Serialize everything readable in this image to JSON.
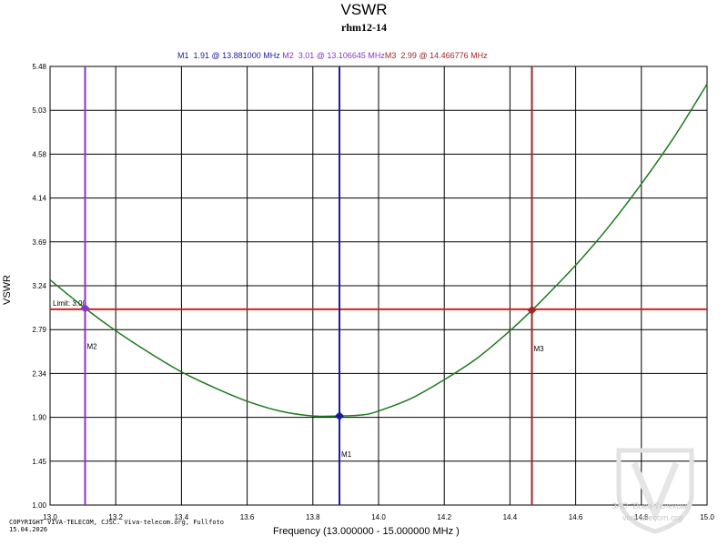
{
  "chart_data": {
    "type": "line",
    "title": "VSWR",
    "subtitle": "rhm12-14",
    "xlabel": "Frequency (13.000000 - 15.000000 MHz )",
    "ylabel": "VSWR",
    "xlim": [
      13.0,
      15.0
    ],
    "ylim": [
      1.0,
      5.48
    ],
    "x_ticks": [
      "13.0",
      "13.2",
      "13.4",
      "13.6",
      "13.8",
      "14.0",
      "14.2",
      "14.4",
      "14.6",
      "14.8",
      "15.0"
    ],
    "y_ticks": [
      "1.00",
      "1.45",
      "1.90",
      "2.34",
      "2.79",
      "3.24",
      "3.69",
      "4.14",
      "4.58",
      "5.03",
      "5.48"
    ],
    "grid": true,
    "series": [
      {
        "name": "VSWR",
        "color": "#1f7a1f",
        "x": [
          13.0,
          13.106645,
          13.2,
          13.3,
          13.4,
          13.5,
          13.6,
          13.7,
          13.8,
          13.881,
          13.95,
          14.0,
          14.1,
          14.2,
          14.3,
          14.4,
          14.466776,
          14.5,
          14.6,
          14.7,
          14.8,
          14.9,
          15.0
        ],
        "y": [
          3.3,
          3.01,
          2.78,
          2.56,
          2.36,
          2.2,
          2.06,
          1.96,
          1.91,
          1.91,
          1.92,
          1.96,
          2.09,
          2.28,
          2.5,
          2.78,
          2.99,
          3.1,
          3.45,
          3.84,
          4.28,
          4.76,
          5.3
        ]
      }
    ],
    "limit": {
      "label": "Limit: 3.00",
      "value": 3.0,
      "color": "#d42020"
    },
    "markers": [
      {
        "name": "M1",
        "label": "M1",
        "x": 13.881,
        "y": 1.91,
        "color": "#1a1aa0",
        "readout": "M1  1.91 @ 13.881000 MHz"
      },
      {
        "name": "M2",
        "label": "M2",
        "x": 13.106645,
        "y": 3.01,
        "color": "#8a35c8",
        "readout": "M2  3.01 @ 13.106645 MHz"
      },
      {
        "name": "M3",
        "label": "M3",
        "x": 14.466776,
        "y": 2.99,
        "color": "#a02828",
        "readout": "M3  2.99 @ 14.466776 MHz"
      }
    ]
  },
  "footer": {
    "copyright_line1": "COPYRIGHT VIVA-TELECOM, CJSC. Viva-telecom.org, Fullfoto",
    "copyright_line2": "15.04.2026",
    "watermark_line1": "ЗАО \"Вива-Телеком\"",
    "watermark_line2": "viva-telecom.org"
  }
}
